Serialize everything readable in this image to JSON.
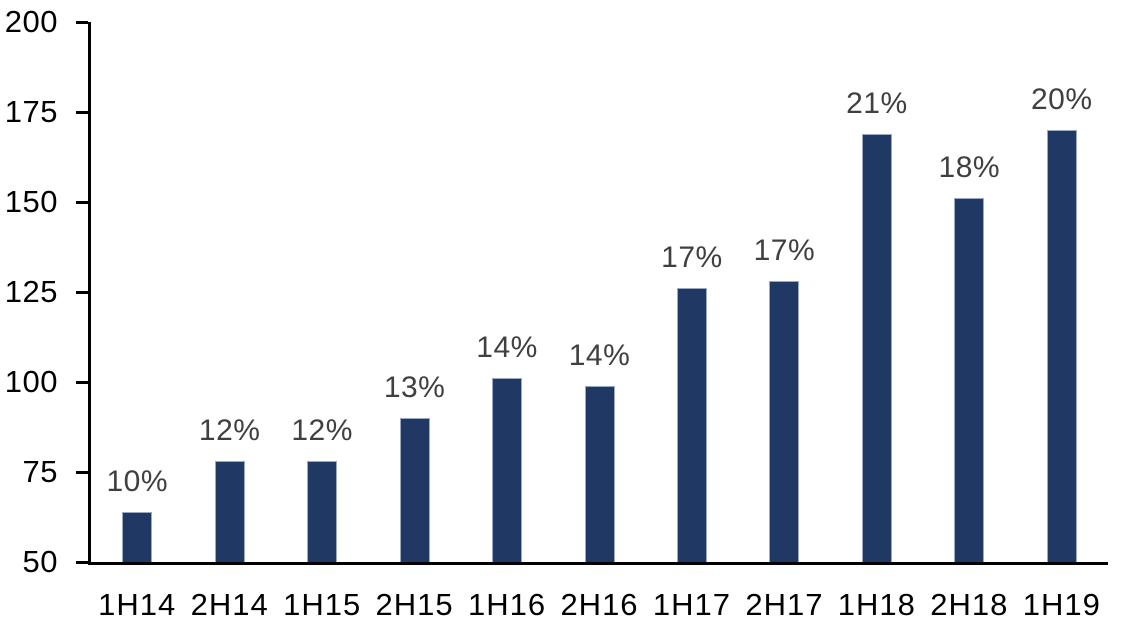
{
  "chart_data": {
    "type": "bar",
    "title": "",
    "xlabel": "",
    "ylabel": "",
    "categories": [
      "1H14",
      "2H14",
      "1H15",
      "2H15",
      "1H16",
      "2H16",
      "1H17",
      "2H17",
      "1H18",
      "2H18",
      "1H19"
    ],
    "values": [
      64,
      78,
      78,
      90,
      101,
      99,
      126,
      128,
      169,
      151,
      170
    ],
    "data_labels": [
      "10%",
      "12%",
      "12%",
      "13%",
      "14%",
      "14%",
      "17%",
      "17%",
      "21%",
      "18%",
      "20%"
    ],
    "ylim": [
      50,
      200
    ],
    "yticks": [
      50,
      75,
      100,
      125,
      150,
      175,
      200
    ],
    "grid": false,
    "legend_position": "none",
    "colors": {
      "bar_fill": "#1F3864",
      "bar_border": "#9AA8C2",
      "data_label": "#404040",
      "axis_line": "#000000",
      "tick_label": "#000000",
      "background": "#FFFFFF"
    }
  }
}
